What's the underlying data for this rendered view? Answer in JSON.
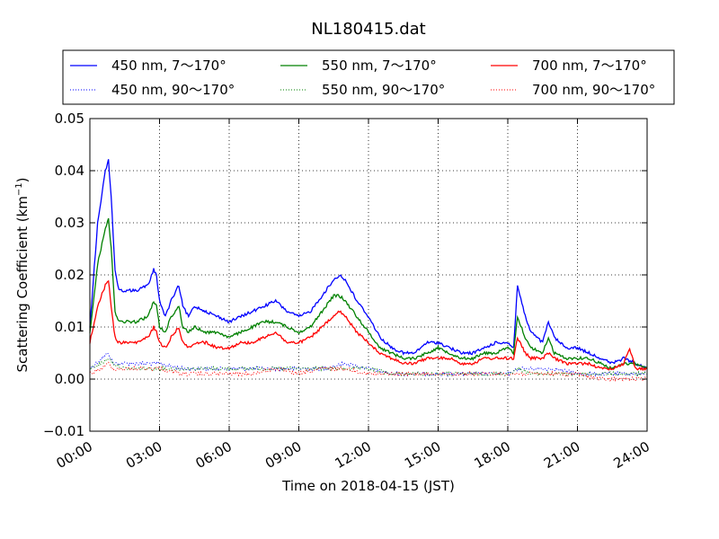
{
  "chart_data": {
    "type": "line",
    "title": "NL180415.dat",
    "xlabel": "Time on 2018-04-15 (JST)",
    "ylabel_main": "Scattering Coefficient (km",
    "ylabel_sup": "−1",
    "ylabel_tail": ")",
    "xlim": [
      "00:00",
      "24:00"
    ],
    "ylim": [
      -0.01,
      0.05
    ],
    "x_ticks": [
      "00:00",
      "03:00",
      "06:00",
      "09:00",
      "12:00",
      "15:00",
      "18:00",
      "21:00",
      "24:00"
    ],
    "y_ticks": [
      "−0.01",
      "0.00",
      "0.01",
      "0.02",
      "0.03",
      "0.04",
      "0.05"
    ],
    "grid": true,
    "legend_position": "top",
    "series": [
      {
        "name": "450 nm, 7～170°",
        "color": "#0000ff",
        "style": "solid",
        "x": [
          "00:00",
          "00:20",
          "00:40",
          "00:48",
          "00:55",
          "01:05",
          "01:15",
          "01:30",
          "02:00",
          "02:30",
          "02:45",
          "02:52",
          "03:00",
          "03:15",
          "03:30",
          "03:50",
          "04:00",
          "04:15",
          "04:30",
          "05:00",
          "05:30",
          "06:00",
          "06:30",
          "07:00",
          "07:30",
          "08:00",
          "08:30",
          "09:00",
          "09:30",
          "10:00",
          "10:30",
          "10:45",
          "11:00",
          "11:30",
          "12:00",
          "12:30",
          "13:00",
          "13:30",
          "14:00",
          "14:30",
          "15:00",
          "15:30",
          "16:00",
          "16:30",
          "17:00",
          "17:30",
          "18:00",
          "18:15",
          "18:25",
          "18:45",
          "19:00",
          "19:30",
          "19:45",
          "20:00",
          "20:30",
          "21:00",
          "21:30",
          "22:00",
          "22:30",
          "23:00",
          "23:30",
          "24:00"
        ],
        "y": [
          0.01,
          0.03,
          0.04,
          0.042,
          0.035,
          0.021,
          0.017,
          0.017,
          0.017,
          0.018,
          0.021,
          0.02,
          0.015,
          0.012,
          0.015,
          0.018,
          0.014,
          0.012,
          0.014,
          0.013,
          0.012,
          0.011,
          0.012,
          0.013,
          0.014,
          0.015,
          0.013,
          0.012,
          0.013,
          0.016,
          0.019,
          0.02,
          0.019,
          0.015,
          0.012,
          0.008,
          0.006,
          0.005,
          0.005,
          0.007,
          0.007,
          0.006,
          0.005,
          0.005,
          0.006,
          0.007,
          0.007,
          0.006,
          0.018,
          0.012,
          0.009,
          0.007,
          0.011,
          0.008,
          0.006,
          0.006,
          0.005,
          0.004,
          0.003,
          0.004,
          0.003,
          0.002
        ]
      },
      {
        "name": "550 nm, 7～170°",
        "color": "#008000",
        "style": "solid",
        "x": [
          "00:00",
          "00:20",
          "00:40",
          "00:48",
          "00:55",
          "01:05",
          "01:15",
          "01:30",
          "02:00",
          "02:30",
          "02:45",
          "02:52",
          "03:00",
          "03:15",
          "03:30",
          "03:50",
          "04:00",
          "04:15",
          "04:30",
          "05:00",
          "05:30",
          "06:00",
          "06:30",
          "07:00",
          "07:30",
          "08:00",
          "08:30",
          "09:00",
          "09:30",
          "10:00",
          "10:30",
          "10:45",
          "11:00",
          "11:30",
          "12:00",
          "12:30",
          "13:00",
          "13:30",
          "14:00",
          "14:30",
          "15:00",
          "15:30",
          "16:00",
          "16:30",
          "17:00",
          "17:30",
          "18:00",
          "18:15",
          "18:25",
          "18:45",
          "19:00",
          "19:30",
          "19:45",
          "20:00",
          "20:30",
          "21:00",
          "21:30",
          "22:00",
          "22:30",
          "23:00",
          "23:30",
          "24:00"
        ],
        "y": [
          0.009,
          0.022,
          0.029,
          0.031,
          0.025,
          0.013,
          0.011,
          0.011,
          0.011,
          0.012,
          0.015,
          0.014,
          0.01,
          0.009,
          0.012,
          0.014,
          0.01,
          0.009,
          0.01,
          0.009,
          0.009,
          0.008,
          0.009,
          0.01,
          0.011,
          0.011,
          0.01,
          0.009,
          0.01,
          0.013,
          0.016,
          0.016,
          0.015,
          0.012,
          0.009,
          0.006,
          0.005,
          0.004,
          0.004,
          0.005,
          0.006,
          0.005,
          0.004,
          0.004,
          0.005,
          0.005,
          0.006,
          0.005,
          0.012,
          0.008,
          0.006,
          0.005,
          0.008,
          0.005,
          0.004,
          0.004,
          0.004,
          0.003,
          0.002,
          0.003,
          0.003,
          0.002
        ]
      },
      {
        "name": "700 nm, 7～170°",
        "color": "#ff0000",
        "style": "solid",
        "x": [
          "00:00",
          "00:20",
          "00:40",
          "00:48",
          "00:55",
          "01:05",
          "01:15",
          "01:30",
          "02:00",
          "02:30",
          "02:45",
          "02:52",
          "03:00",
          "03:15",
          "03:30",
          "03:50",
          "04:00",
          "04:15",
          "04:30",
          "05:00",
          "05:30",
          "06:00",
          "06:30",
          "07:00",
          "07:30",
          "08:00",
          "08:30",
          "09:00",
          "09:30",
          "10:00",
          "10:30",
          "10:45",
          "11:00",
          "11:30",
          "12:00",
          "12:30",
          "13:00",
          "13:30",
          "14:00",
          "14:30",
          "15:00",
          "15:30",
          "16:00",
          "16:30",
          "17:00",
          "17:30",
          "18:00",
          "18:15",
          "18:25",
          "18:45",
          "19:00",
          "19:30",
          "19:45",
          "20:00",
          "20:30",
          "21:00",
          "21:30",
          "22:00",
          "22:30",
          "23:00",
          "23:15",
          "23:30",
          "24:00"
        ],
        "y": [
          0.007,
          0.014,
          0.018,
          0.019,
          0.014,
          0.008,
          0.007,
          0.007,
          0.007,
          0.008,
          0.01,
          0.009,
          0.007,
          0.006,
          0.008,
          0.01,
          0.007,
          0.006,
          0.007,
          0.007,
          0.006,
          0.006,
          0.007,
          0.007,
          0.008,
          0.009,
          0.007,
          0.007,
          0.008,
          0.01,
          0.012,
          0.013,
          0.012,
          0.009,
          0.007,
          0.005,
          0.004,
          0.003,
          0.003,
          0.004,
          0.004,
          0.004,
          0.003,
          0.003,
          0.004,
          0.004,
          0.004,
          0.004,
          0.008,
          0.005,
          0.004,
          0.004,
          0.005,
          0.004,
          0.003,
          0.003,
          0.003,
          0.002,
          0.002,
          0.003,
          0.006,
          0.002,
          0.002
        ]
      },
      {
        "name": "450 nm, 90～170°",
        "color": "#0000ff",
        "style": "dotted",
        "x": [
          "00:00",
          "00:30",
          "00:48",
          "01:00",
          "01:30",
          "02:00",
          "03:00",
          "04:00",
          "05:00",
          "06:00",
          "07:00",
          "08:00",
          "09:00",
          "10:00",
          "11:00",
          "12:00",
          "13:00",
          "14:00",
          "15:00",
          "16:00",
          "17:00",
          "18:00",
          "18:30",
          "19:00",
          "20:00",
          "21:00",
          "22:00",
          "23:00",
          "24:00"
        ],
        "y": [
          0.002,
          0.004,
          0.005,
          0.003,
          0.003,
          0.003,
          0.003,
          0.002,
          0.002,
          0.002,
          0.002,
          0.002,
          0.002,
          0.002,
          0.003,
          0.002,
          0.001,
          0.001,
          0.001,
          0.001,
          0.001,
          0.001,
          0.002,
          0.002,
          0.002,
          0.001,
          0.001,
          0.001,
          0.001
        ]
      },
      {
        "name": "550 nm, 90～170°",
        "color": "#008000",
        "style": "dotted",
        "x": [
          "00:00",
          "00:30",
          "00:48",
          "01:00",
          "01:30",
          "02:00",
          "03:00",
          "04:00",
          "05:00",
          "06:00",
          "07:00",
          "08:00",
          "09:00",
          "10:00",
          "11:00",
          "12:00",
          "13:00",
          "14:00",
          "15:00",
          "16:00",
          "17:00",
          "18:00",
          "18:30",
          "19:00",
          "20:00",
          "21:00",
          "22:00",
          "23:00",
          "24:00"
        ],
        "y": [
          0.002,
          0.003,
          0.004,
          0.003,
          0.002,
          0.002,
          0.002,
          0.002,
          0.002,
          0.002,
          0.002,
          0.002,
          0.002,
          0.002,
          0.002,
          0.002,
          0.001,
          0.001,
          0.001,
          0.001,
          0.001,
          0.001,
          0.002,
          0.001,
          0.001,
          0.001,
          0.001,
          0.001,
          0.001
        ]
      },
      {
        "name": "700 nm, 90～170°",
        "color": "#ff0000",
        "style": "dotted",
        "x": [
          "00:00",
          "00:30",
          "00:48",
          "01:00",
          "01:30",
          "02:00",
          "03:00",
          "04:00",
          "05:00",
          "06:00",
          "07:00",
          "08:00",
          "09:00",
          "10:00",
          "11:00",
          "12:00",
          "13:00",
          "14:00",
          "15:00",
          "16:00",
          "17:00",
          "18:00",
          "18:30",
          "19:00",
          "20:00",
          "21:00",
          "22:00",
          "23:00",
          "24:00"
        ],
        "y": [
          0.001,
          0.002,
          0.003,
          0.002,
          0.002,
          0.002,
          0.002,
          0.001,
          0.001,
          0.001,
          0.001,
          0.002,
          0.001,
          0.002,
          0.002,
          0.001,
          0.001,
          0.001,
          0.001,
          0.001,
          0.001,
          0.001,
          0.001,
          0.001,
          0.001,
          0.001,
          0.0,
          0.0,
          0.0
        ]
      }
    ],
    "legend_order": [
      0,
      1,
      2,
      3,
      4,
      5
    ]
  }
}
